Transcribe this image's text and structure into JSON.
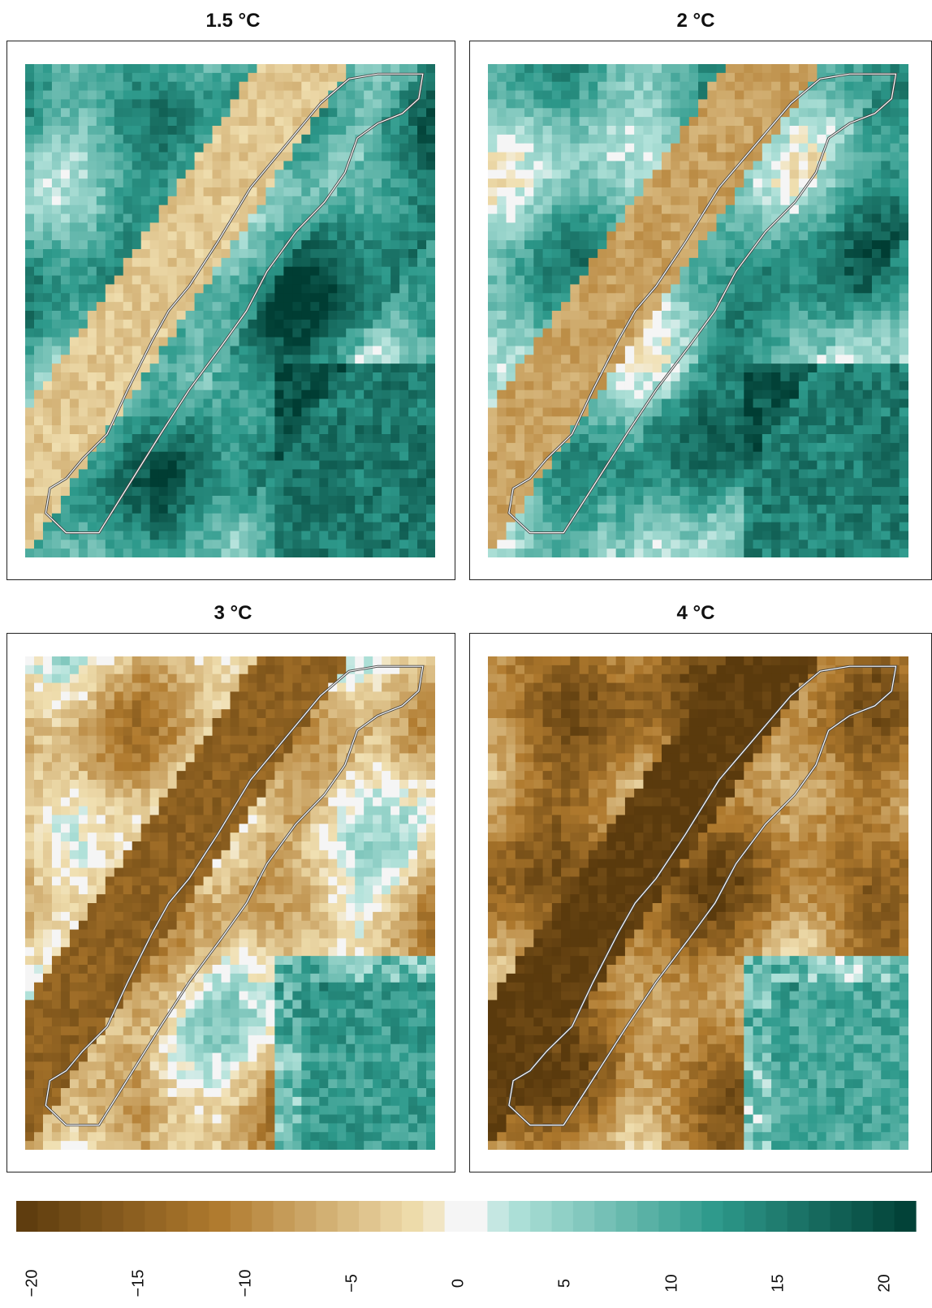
{
  "panels": [
    {
      "title": "1.5 °C",
      "id": "p15"
    },
    {
      "title": "2 °C",
      "id": "p2"
    },
    {
      "title": "3 °C",
      "id": "p3"
    },
    {
      "title": "4 °C",
      "id": "p4"
    }
  ],
  "colorbar": {
    "ticks": [
      "−20",
      "−15",
      "−10",
      "−5",
      "0",
      "5",
      "10",
      "15",
      "20"
    ],
    "min": -20,
    "max": 20,
    "palette": {
      "neg_dark": "#5a3a0d",
      "neg_mid": "#b07a2e",
      "neg_light": "#f0dfb0",
      "zero": "#f5f5f5",
      "pos_light": "#b2e2da",
      "pos_mid": "#2e9a8c",
      "pos_dark": "#003d33"
    }
  },
  "colors": {
    "outline": "#ffffff",
    "outline_inner": "#444444",
    "frame": "#222222"
  }
}
